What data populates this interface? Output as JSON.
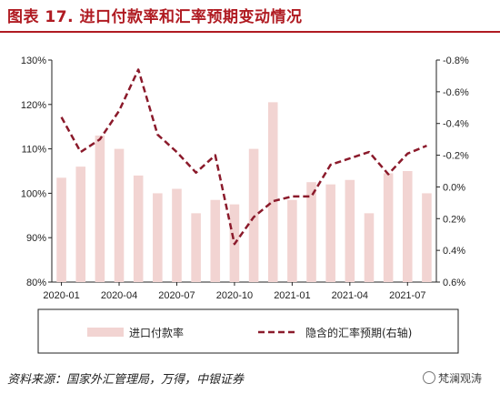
{
  "figure": {
    "title": "图表 17. 进口付款率和汇率预期变动情况",
    "source": "资料来源：国家外汇管理局，万得，中银证券",
    "watermark": "梵澜观涛"
  },
  "chart_data": {
    "type": "bar+line",
    "categories": [
      "2020-01",
      "2020-02",
      "2020-03",
      "2020-04",
      "2020-05",
      "2020-06",
      "2020-07",
      "2020-08",
      "2020-09",
      "2020-10",
      "2020-11",
      "2020-12",
      "2021-01",
      "2021-02",
      "2021-03",
      "2021-04",
      "2021-05",
      "2021-06",
      "2021-07",
      "2021-08"
    ],
    "x_tick_labels": [
      "2020-01",
      "2020-04",
      "2020-07",
      "2020-10",
      "2021-01",
      "2021-04",
      "2021-07"
    ],
    "series": [
      {
        "name": "进口付款率",
        "type": "bar",
        "axis": "left",
        "color": "#f2d4d2",
        "values": [
          103.5,
          106,
          113,
          110,
          104,
          100,
          101,
          95.5,
          98.5,
          97.5,
          110,
          120.5,
          98.5,
          102.5,
          102,
          103,
          95.5,
          104.5,
          105,
          100
        ]
      },
      {
        "name": "隐含的汇率预期(右轴)",
        "type": "line",
        "axis": "right",
        "color": "#8b1a2b",
        "dash": true,
        "points": [
          {
            "x": "2020-01",
            "y": -0.44
          },
          {
            "x": "2020-02",
            "y": -0.22
          },
          {
            "x": "2020-03",
            "y": -0.3
          },
          {
            "x": "2020-04",
            "y": -0.48
          },
          {
            "x": "2020-05",
            "y": -0.74
          },
          {
            "x": "2020-06",
            "y": -0.33
          },
          {
            "x": "2020-07",
            "y": -0.22
          },
          {
            "x": "2020-08",
            "y": -0.09
          },
          {
            "x": "2020-09",
            "y": -0.2
          },
          {
            "x": "2020-10",
            "y": 0.36
          },
          {
            "x": "2020-11",
            "y": 0.19
          },
          {
            "x": "2020-12",
            "y": 0.09
          },
          {
            "x": "2021-01",
            "y": 0.06
          },
          {
            "x": "2021-02",
            "y": 0.06
          },
          {
            "x": "2021-03",
            "y": -0.14
          },
          {
            "x": "2021-04",
            "y": -0.18
          },
          {
            "x": "2021-05",
            "y": -0.22
          },
          {
            "x": "2021-06",
            "y": -0.08
          },
          {
            "x": "2021-07",
            "y": -0.21
          },
          {
            "x": "2021-08",
            "y": -0.26
          }
        ]
      }
    ],
    "y_left": {
      "ticks": [
        "80%",
        "90%",
        "100%",
        "110%",
        "120%",
        "130%"
      ],
      "min": 80,
      "max": 130
    },
    "y_right": {
      "ticks": [
        "-0.8%",
        "-0.6%",
        "-0.4%",
        "-0.2%",
        "0.0%",
        "0.2%",
        "0.4%",
        "0.6%"
      ],
      "min": -0.8,
      "max": 0.6,
      "inverted": true
    },
    "legend": {
      "position": "bottom"
    },
    "grid": false
  }
}
